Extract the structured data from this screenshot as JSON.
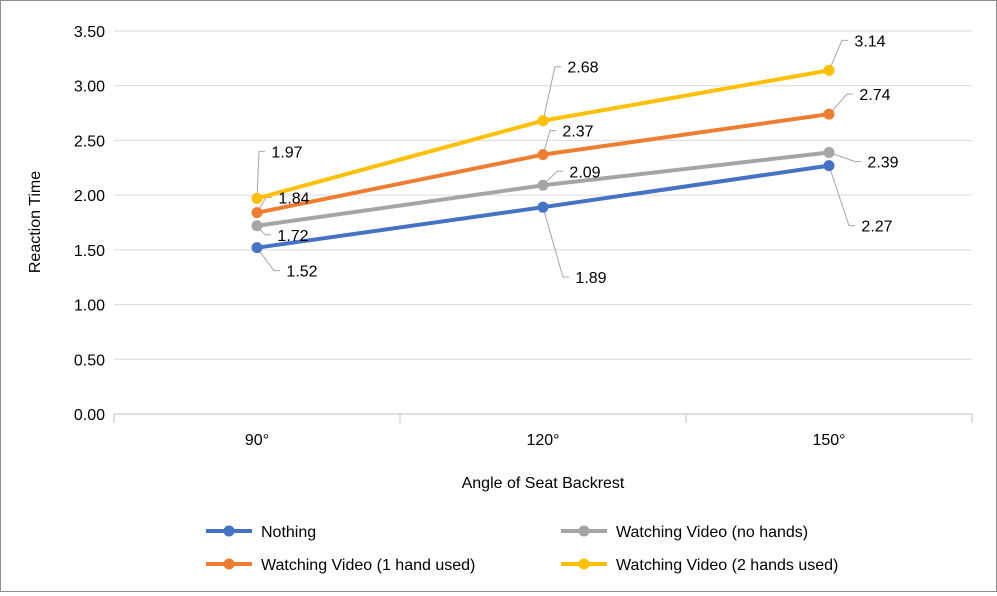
{
  "chart_data": {
    "type": "line",
    "title": "",
    "xlabel": "Angle of Seat Backrest",
    "ylabel": "Reaction Time",
    "categories": [
      "90°",
      "120°",
      "150°"
    ],
    "ylim": [
      0,
      3.5
    ],
    "yticks": [
      "0.00",
      "0.50",
      "1.00",
      "1.50",
      "2.00",
      "2.50",
      "3.00",
      "3.50"
    ],
    "grid": "horizontal",
    "legend_position": "bottom",
    "series": [
      {
        "name": "Nothing",
        "color": "#4472C4",
        "values": [
          1.52,
          1.89,
          2.27
        ],
        "labels": [
          "1.52",
          "1.89",
          "2.27"
        ]
      },
      {
        "name": "Watching Video (no hands)",
        "color": "#A5A5A5",
        "values": [
          1.72,
          2.09,
          2.39
        ],
        "labels": [
          "1.72",
          "2.09",
          "2.39"
        ]
      },
      {
        "name": "Watching Video (1 hand used)",
        "color": "#ED7D31",
        "values": [
          1.84,
          2.37,
          2.74
        ],
        "labels": [
          "1.84",
          "2.37",
          "2.74"
        ]
      },
      {
        "name": "Watching Video (2 hands used)",
        "color": "#FFC000",
        "values": [
          1.97,
          2.68,
          3.14
        ],
        "labels": [
          "1.97",
          "2.68",
          "3.14"
        ]
      }
    ]
  }
}
